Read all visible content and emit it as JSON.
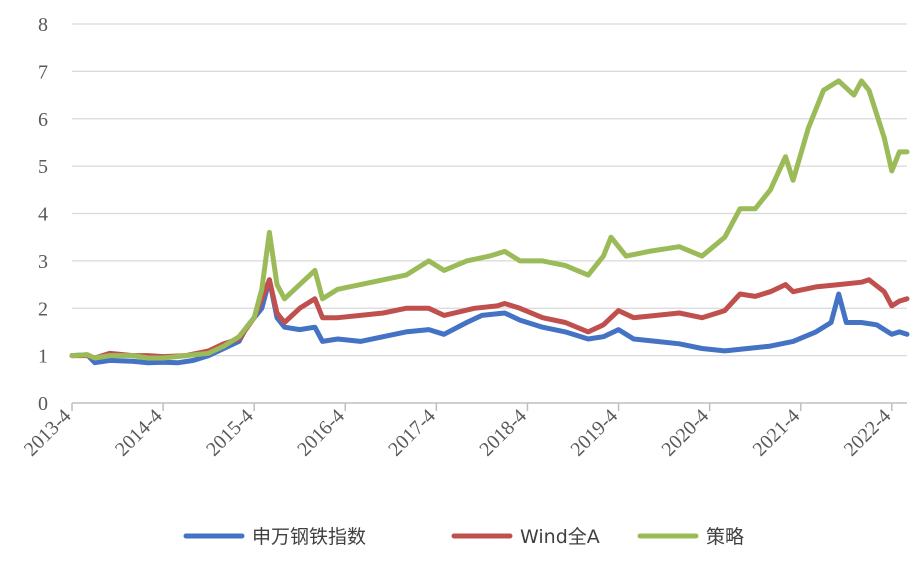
{
  "chart_data": {
    "type": "line",
    "title": "",
    "xlabel": "",
    "ylabel": "",
    "ylim": [
      0,
      8
    ],
    "yticks": [
      "0",
      "1",
      "2",
      "3",
      "4",
      "5",
      "6",
      "7",
      "8"
    ],
    "x_range": [
      "2013-04",
      "2022-06"
    ],
    "xticks": [
      "2013-4",
      "2014-4",
      "2015-4",
      "2016-4",
      "2017-4",
      "2018-4",
      "2019-4",
      "2020-4",
      "2021-4",
      "2022-4"
    ],
    "grid": "horizontal",
    "legend": "bottom",
    "series": [
      {
        "name": "申万钢铁指数",
        "color": "#4472C4",
        "points": [
          [
            "2013-04",
            1.0
          ],
          [
            "2013-06",
            1.02
          ],
          [
            "2013-07",
            0.85
          ],
          [
            "2013-09",
            0.9
          ],
          [
            "2013-12",
            0.88
          ],
          [
            "2014-02",
            0.85
          ],
          [
            "2014-04",
            0.86
          ],
          [
            "2014-06",
            0.85
          ],
          [
            "2014-08",
            0.9
          ],
          [
            "2014-10",
            1.0
          ],
          [
            "2014-12",
            1.15
          ],
          [
            "2015-02",
            1.3
          ],
          [
            "2015-03",
            1.6
          ],
          [
            "2015-05",
            2.0
          ],
          [
            "2015-06",
            2.6
          ],
          [
            "2015-07",
            1.8
          ],
          [
            "2015-08",
            1.6
          ],
          [
            "2015-10",
            1.55
          ],
          [
            "2015-12",
            1.6
          ],
          [
            "2016-01",
            1.3
          ],
          [
            "2016-03",
            1.35
          ],
          [
            "2016-06",
            1.3
          ],
          [
            "2016-09",
            1.4
          ],
          [
            "2016-12",
            1.5
          ],
          [
            "2017-03",
            1.55
          ],
          [
            "2017-05",
            1.45
          ],
          [
            "2017-08",
            1.7
          ],
          [
            "2017-10",
            1.85
          ],
          [
            "2018-01",
            1.9
          ],
          [
            "2018-03",
            1.75
          ],
          [
            "2018-06",
            1.6
          ],
          [
            "2018-09",
            1.5
          ],
          [
            "2018-12",
            1.35
          ],
          [
            "2019-02",
            1.4
          ],
          [
            "2019-04",
            1.55
          ],
          [
            "2019-06",
            1.35
          ],
          [
            "2019-09",
            1.3
          ],
          [
            "2019-12",
            1.25
          ],
          [
            "2020-03",
            1.15
          ],
          [
            "2020-06",
            1.1
          ],
          [
            "2020-09",
            1.15
          ],
          [
            "2020-12",
            1.2
          ],
          [
            "2021-03",
            1.3
          ],
          [
            "2021-06",
            1.5
          ],
          [
            "2021-08",
            1.7
          ],
          [
            "2021-09",
            2.3
          ],
          [
            "2021-10",
            1.7
          ],
          [
            "2021-12",
            1.7
          ],
          [
            "2022-02",
            1.65
          ],
          [
            "2022-04",
            1.45
          ],
          [
            "2022-05",
            1.5
          ],
          [
            "2022-06",
            1.45
          ]
        ]
      },
      {
        "name": "Wind全A",
        "color": "#C0504D",
        "points": [
          [
            "2013-04",
            1.0
          ],
          [
            "2013-06",
            1.0
          ],
          [
            "2013-07",
            0.95
          ],
          [
            "2013-09",
            1.05
          ],
          [
            "2013-12",
            1.0
          ],
          [
            "2014-02",
            1.0
          ],
          [
            "2014-04",
            0.98
          ],
          [
            "2014-07",
            1.0
          ],
          [
            "2014-10",
            1.1
          ],
          [
            "2014-12",
            1.25
          ],
          [
            "2015-02",
            1.35
          ],
          [
            "2015-04",
            1.8
          ],
          [
            "2015-06",
            2.6
          ],
          [
            "2015-07",
            1.9
          ],
          [
            "2015-08",
            1.7
          ],
          [
            "2015-10",
            2.0
          ],
          [
            "2015-12",
            2.2
          ],
          [
            "2016-01",
            1.8
          ],
          [
            "2016-03",
            1.8
          ],
          [
            "2016-06",
            1.85
          ],
          [
            "2016-09",
            1.9
          ],
          [
            "2016-12",
            2.0
          ],
          [
            "2017-03",
            2.0
          ],
          [
            "2017-05",
            1.85
          ],
          [
            "2017-09",
            2.0
          ],
          [
            "2017-12",
            2.05
          ],
          [
            "2018-01",
            2.1
          ],
          [
            "2018-03",
            2.0
          ],
          [
            "2018-06",
            1.8
          ],
          [
            "2018-09",
            1.7
          ],
          [
            "2018-12",
            1.5
          ],
          [
            "2019-02",
            1.65
          ],
          [
            "2019-04",
            1.95
          ],
          [
            "2019-06",
            1.8
          ],
          [
            "2019-09",
            1.85
          ],
          [
            "2019-12",
            1.9
          ],
          [
            "2020-03",
            1.8
          ],
          [
            "2020-06",
            1.95
          ],
          [
            "2020-08",
            2.3
          ],
          [
            "2020-10",
            2.25
          ],
          [
            "2020-12",
            2.35
          ],
          [
            "2021-02",
            2.5
          ],
          [
            "2021-03",
            2.35
          ],
          [
            "2021-06",
            2.45
          ],
          [
            "2021-09",
            2.5
          ],
          [
            "2021-12",
            2.55
          ],
          [
            "2022-01",
            2.6
          ],
          [
            "2022-03",
            2.35
          ],
          [
            "2022-04",
            2.05
          ],
          [
            "2022-05",
            2.15
          ],
          [
            "2022-06",
            2.2
          ]
        ]
      },
      {
        "name": "策略",
        "color": "#9BBB59",
        "points": [
          [
            "2013-04",
            1.0
          ],
          [
            "2013-06",
            1.02
          ],
          [
            "2013-07",
            0.95
          ],
          [
            "2013-09",
            1.0
          ],
          [
            "2013-12",
            1.0
          ],
          [
            "2014-02",
            0.95
          ],
          [
            "2014-04",
            0.95
          ],
          [
            "2014-07",
            1.0
          ],
          [
            "2014-10",
            1.05
          ],
          [
            "2014-12",
            1.2
          ],
          [
            "2015-02",
            1.4
          ],
          [
            "2015-04",
            1.8
          ],
          [
            "2015-05",
            2.4
          ],
          [
            "2015-06",
            3.6
          ],
          [
            "2015-07",
            2.5
          ],
          [
            "2015-08",
            2.2
          ],
          [
            "2015-10",
            2.5
          ],
          [
            "2015-12",
            2.8
          ],
          [
            "2016-01",
            2.2
          ],
          [
            "2016-03",
            2.4
          ],
          [
            "2016-06",
            2.5
          ],
          [
            "2016-09",
            2.6
          ],
          [
            "2016-12",
            2.7
          ],
          [
            "2017-03",
            3.0
          ],
          [
            "2017-05",
            2.8
          ],
          [
            "2017-08",
            3.0
          ],
          [
            "2017-11",
            3.1
          ],
          [
            "2018-01",
            3.2
          ],
          [
            "2018-03",
            3.0
          ],
          [
            "2018-06",
            3.0
          ],
          [
            "2018-09",
            2.9
          ],
          [
            "2018-12",
            2.7
          ],
          [
            "2019-02",
            3.1
          ],
          [
            "2019-03",
            3.5
          ],
          [
            "2019-05",
            3.1
          ],
          [
            "2019-08",
            3.2
          ],
          [
            "2019-12",
            3.3
          ],
          [
            "2020-03",
            3.1
          ],
          [
            "2020-06",
            3.5
          ],
          [
            "2020-08",
            4.1
          ],
          [
            "2020-10",
            4.1
          ],
          [
            "2020-12",
            4.5
          ],
          [
            "2021-02",
            5.2
          ],
          [
            "2021-03",
            4.7
          ],
          [
            "2021-05",
            5.8
          ],
          [
            "2021-07",
            6.6
          ],
          [
            "2021-09",
            6.8
          ],
          [
            "2021-11",
            6.5
          ],
          [
            "2021-12",
            6.8
          ],
          [
            "2022-01",
            6.6
          ],
          [
            "2022-03",
            5.6
          ],
          [
            "2022-04",
            4.9
          ],
          [
            "2022-05",
            5.3
          ],
          [
            "2022-06",
            5.3
          ]
        ]
      }
    ]
  }
}
